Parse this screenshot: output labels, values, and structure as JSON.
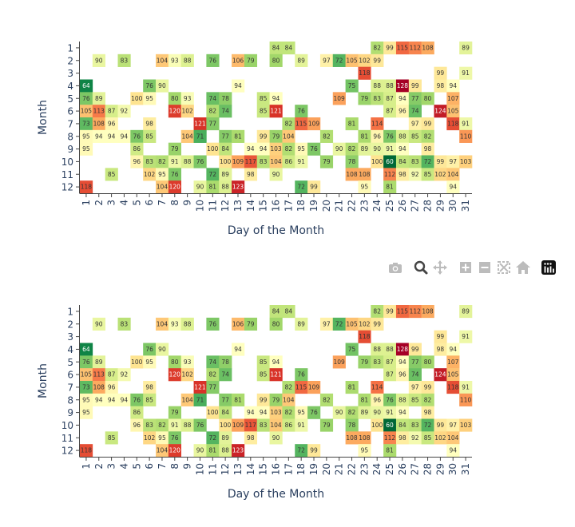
{
  "chart_data": [
    {
      "type": "heatmap",
      "title": "",
      "xlabel": "Day of the Month",
      "ylabel": "Month",
      "x": [
        1,
        2,
        3,
        4,
        5,
        6,
        7,
        8,
        9,
        10,
        11,
        12,
        13,
        14,
        15,
        16,
        17,
        18,
        19,
        20,
        21,
        22,
        23,
        24,
        25,
        26,
        27,
        28,
        29,
        30,
        31
      ],
      "y": [
        1,
        2,
        3,
        4,
        5,
        6,
        7,
        8,
        9,
        10,
        11,
        12
      ],
      "grid": false,
      "colorscale": [
        "#a50026",
        "#d73027",
        "#f46d43",
        "#fdae61",
        "#fee08b",
        "#ffffbf",
        "#d9ef8b",
        "#a6d96a",
        "#66bd63",
        "#1a9850",
        "#006837"
      ],
      "color_range": [
        60,
        128
      ],
      "z": [
        [
          null,
          null,
          null,
          null,
          null,
          null,
          null,
          null,
          null,
          null,
          null,
          null,
          null,
          null,
          null,
          84,
          84,
          null,
          null,
          null,
          null,
          null,
          null,
          82,
          99,
          115,
          112,
          108,
          null,
          null,
          89
        ],
        [
          null,
          90,
          null,
          83,
          null,
          null,
          104,
          93,
          88,
          null,
          76,
          null,
          106,
          79,
          null,
          80,
          null,
          89,
          null,
          97,
          72,
          105,
          102,
          99,
          null,
          null,
          null,
          null,
          null,
          null,
          null
        ],
        [
          null,
          null,
          null,
          null,
          null,
          null,
          null,
          null,
          null,
          null,
          null,
          null,
          null,
          null,
          null,
          null,
          null,
          null,
          null,
          null,
          null,
          null,
          118,
          null,
          null,
          null,
          null,
          null,
          99,
          null,
          91
        ],
        [
          64,
          null,
          null,
          null,
          null,
          76,
          90,
          null,
          null,
          null,
          null,
          null,
          94,
          null,
          null,
          null,
          null,
          null,
          null,
          null,
          null,
          75,
          null,
          88,
          88,
          128,
          99,
          null,
          98,
          94,
          null
        ],
        [
          76,
          89,
          null,
          null,
          100,
          95,
          null,
          80,
          93,
          null,
          74,
          78,
          null,
          null,
          85,
          94,
          null,
          null,
          null,
          null,
          109,
          null,
          79,
          83,
          87,
          94,
          77,
          80,
          null,
          107,
          null
        ],
        [
          105,
          113,
          87,
          92,
          null,
          null,
          null,
          120,
          102,
          null,
          82,
          74,
          null,
          null,
          85,
          121,
          null,
          76,
          null,
          null,
          null,
          null,
          null,
          null,
          87,
          96,
          74,
          null,
          124,
          105,
          null
        ],
        [
          73,
          108,
          96,
          null,
          null,
          98,
          null,
          null,
          null,
          121,
          77,
          null,
          null,
          null,
          null,
          null,
          82,
          115,
          109,
          null,
          null,
          81,
          null,
          114,
          null,
          null,
          97,
          99,
          null,
          118,
          91
        ],
        [
          95,
          94,
          94,
          94,
          76,
          85,
          null,
          null,
          104,
          71,
          null,
          77,
          81,
          null,
          99,
          79,
          104,
          null,
          null,
          82,
          null,
          null,
          81,
          96,
          76,
          88,
          85,
          82,
          null,
          null,
          110
        ],
        [
          95,
          null,
          null,
          null,
          86,
          null,
          null,
          79,
          null,
          null,
          100,
          84,
          null,
          94,
          94,
          103,
          82,
          95,
          76,
          null,
          90,
          82,
          89,
          90,
          91,
          94,
          null,
          98,
          null,
          null,
          null
        ],
        [
          null,
          null,
          null,
          null,
          96,
          83,
          82,
          91,
          88,
          76,
          null,
          100,
          109,
          117,
          83,
          104,
          86,
          91,
          null,
          79,
          null,
          78,
          null,
          100,
          60,
          84,
          83,
          72,
          99,
          97,
          103
        ],
        [
          null,
          null,
          85,
          null,
          null,
          102,
          95,
          76,
          null,
          null,
          72,
          89,
          null,
          98,
          null,
          90,
          null,
          null,
          null,
          null,
          null,
          108,
          108,
          null,
          112,
          98,
          92,
          85,
          102,
          104,
          null
        ],
        [
          118,
          null,
          null,
          null,
          null,
          null,
          104,
          120,
          null,
          90,
          81,
          88,
          123,
          null,
          null,
          null,
          null,
          72,
          99,
          null,
          null,
          null,
          95,
          null,
          81,
          null,
          null,
          null,
          null,
          94,
          null
        ]
      ]
    },
    {
      "type": "heatmap",
      "title": "",
      "xlabel": "Day of the Month",
      "ylabel": "Month",
      "x": [
        1,
        2,
        3,
        4,
        5,
        6,
        7,
        8,
        9,
        10,
        11,
        12,
        13,
        14,
        15,
        16,
        17,
        18,
        19,
        20,
        21,
        22,
        23,
        24,
        25,
        26,
        27,
        28,
        29,
        30,
        31
      ],
      "y": [
        1,
        2,
        3,
        4,
        5,
        6,
        7,
        8,
        9,
        10,
        11,
        12
      ],
      "grid": false,
      "colorscale": [
        "#a50026",
        "#d73027",
        "#f46d43",
        "#fdae61",
        "#fee08b",
        "#ffffbf",
        "#d9ef8b",
        "#a6d96a",
        "#66bd63",
        "#1a9850",
        "#006837"
      ],
      "color_range": [
        60,
        128
      ],
      "z": [
        [
          null,
          null,
          null,
          null,
          null,
          null,
          null,
          null,
          null,
          null,
          null,
          null,
          null,
          null,
          null,
          84,
          84,
          null,
          null,
          null,
          null,
          null,
          null,
          82,
          99,
          115,
          112,
          108,
          null,
          null,
          89
        ],
        [
          null,
          90,
          null,
          83,
          null,
          null,
          104,
          93,
          88,
          null,
          76,
          null,
          106,
          79,
          null,
          80,
          null,
          89,
          null,
          97,
          72,
          105,
          102,
          99,
          null,
          null,
          null,
          null,
          null,
          null,
          null
        ],
        [
          null,
          null,
          null,
          null,
          null,
          null,
          null,
          null,
          null,
          null,
          null,
          null,
          null,
          null,
          null,
          null,
          null,
          null,
          null,
          null,
          null,
          null,
          118,
          null,
          null,
          null,
          null,
          null,
          99,
          null,
          91
        ],
        [
          64,
          null,
          null,
          null,
          null,
          76,
          90,
          null,
          null,
          null,
          null,
          null,
          94,
          null,
          null,
          null,
          null,
          null,
          null,
          null,
          null,
          75,
          null,
          88,
          88,
          128,
          99,
          null,
          98,
          94,
          null
        ],
        [
          76,
          89,
          null,
          null,
          100,
          95,
          null,
          80,
          93,
          null,
          74,
          78,
          null,
          null,
          85,
          94,
          null,
          null,
          null,
          null,
          109,
          null,
          79,
          83,
          87,
          94,
          77,
          80,
          null,
          107,
          null
        ],
        [
          105,
          113,
          87,
          92,
          null,
          null,
          null,
          120,
          102,
          null,
          82,
          74,
          null,
          null,
          85,
          121,
          null,
          76,
          null,
          null,
          null,
          null,
          null,
          null,
          87,
          96,
          74,
          null,
          124,
          105,
          null
        ],
        [
          73,
          108,
          96,
          null,
          null,
          98,
          null,
          null,
          null,
          121,
          77,
          null,
          null,
          null,
          null,
          null,
          82,
          115,
          109,
          null,
          null,
          81,
          null,
          114,
          null,
          null,
          97,
          99,
          null,
          118,
          91
        ],
        [
          95,
          94,
          94,
          94,
          76,
          85,
          null,
          null,
          104,
          71,
          null,
          77,
          81,
          null,
          99,
          79,
          104,
          null,
          null,
          82,
          null,
          null,
          81,
          96,
          76,
          88,
          85,
          82,
          null,
          null,
          110
        ],
        [
          95,
          null,
          null,
          null,
          86,
          null,
          null,
          79,
          null,
          null,
          100,
          84,
          null,
          94,
          94,
          103,
          82,
          95,
          76,
          null,
          90,
          82,
          89,
          90,
          91,
          94,
          null,
          98,
          null,
          null,
          null
        ],
        [
          null,
          null,
          null,
          null,
          96,
          83,
          82,
          91,
          88,
          76,
          null,
          100,
          109,
          117,
          83,
          104,
          86,
          91,
          null,
          79,
          null,
          78,
          null,
          100,
          60,
          84,
          83,
          72,
          99,
          97,
          103
        ],
        [
          null,
          null,
          85,
          null,
          null,
          102,
          95,
          76,
          null,
          null,
          72,
          89,
          null,
          98,
          null,
          90,
          null,
          null,
          null,
          null,
          null,
          108,
          108,
          null,
          112,
          98,
          92,
          85,
          102,
          104,
          null
        ],
        [
          118,
          null,
          null,
          null,
          null,
          null,
          104,
          120,
          null,
          90,
          81,
          88,
          123,
          null,
          null,
          null,
          null,
          72,
          99,
          null,
          null,
          null,
          95,
          null,
          81,
          null,
          null,
          null,
          null,
          94,
          null
        ]
      ]
    }
  ],
  "modebar": {
    "buttons": [
      {
        "name": "camera-icon",
        "interactable": true
      },
      {
        "name": "zoom-icon",
        "interactable": true
      },
      {
        "name": "pan-icon",
        "interactable": true
      },
      {
        "name": "zoom-in-icon",
        "interactable": true
      },
      {
        "name": "zoom-out-icon",
        "interactable": true
      },
      {
        "name": "autoscale-icon",
        "interactable": true
      },
      {
        "name": "reset-axes-icon",
        "interactable": true
      },
      {
        "name": "plotly-logo-icon",
        "interactable": true
      }
    ]
  }
}
